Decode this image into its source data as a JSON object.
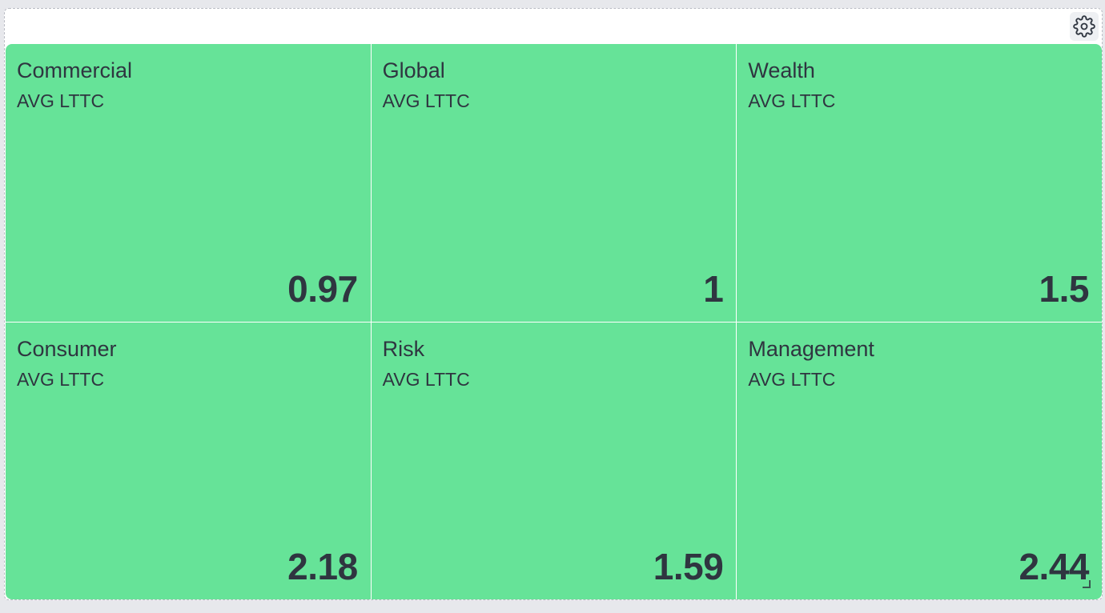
{
  "tiles": [
    {
      "title": "Commercial",
      "subtitle": "AVG LTTC",
      "value": "0.97"
    },
    {
      "title": "Global",
      "subtitle": "AVG LTTC",
      "value": "1"
    },
    {
      "title": "Wealth",
      "subtitle": "AVG LTTC",
      "value": "1.5"
    },
    {
      "title": "Consumer",
      "subtitle": "AVG LTTC",
      "value": "2.18"
    },
    {
      "title": "Risk",
      "subtitle": "AVG LTTC",
      "value": "1.59"
    },
    {
      "title": "Management",
      "subtitle": "AVG LTTC",
      "value": "2.44"
    }
  ],
  "toolbar": {
    "settings_icon": "gear-icon"
  },
  "colors": {
    "tile_background": "#66e398",
    "text": "#2f3540",
    "panel_background": "#ffffff",
    "page_background": "#e7e8ec"
  }
}
